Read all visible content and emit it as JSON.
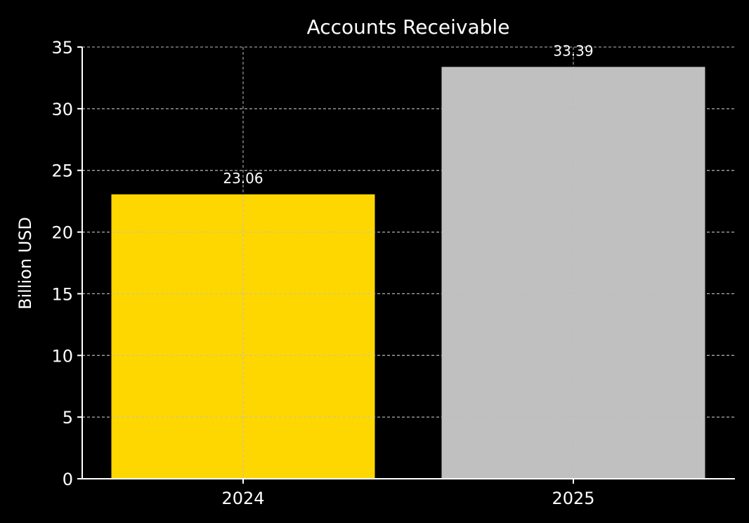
{
  "chart_data": {
    "type": "bar",
    "title": "Accounts Receivable",
    "xlabel": "",
    "ylabel": "Billion USD",
    "categories": [
      "2024",
      "2025"
    ],
    "values": [
      23.06,
      33.39
    ],
    "value_labels": [
      "23.06",
      "33.39"
    ],
    "bar_colors": [
      "#FFD700",
      "#C0C0C0"
    ],
    "ylim": [
      0,
      35
    ],
    "yticks": [
      0,
      5,
      10,
      15,
      20,
      25,
      30,
      35
    ],
    "ytick_labels": [
      "0",
      "5",
      "10",
      "15",
      "20",
      "25",
      "30",
      "35"
    ],
    "grid": true,
    "background": "#000000",
    "text_color": "#FFFFFF"
  }
}
